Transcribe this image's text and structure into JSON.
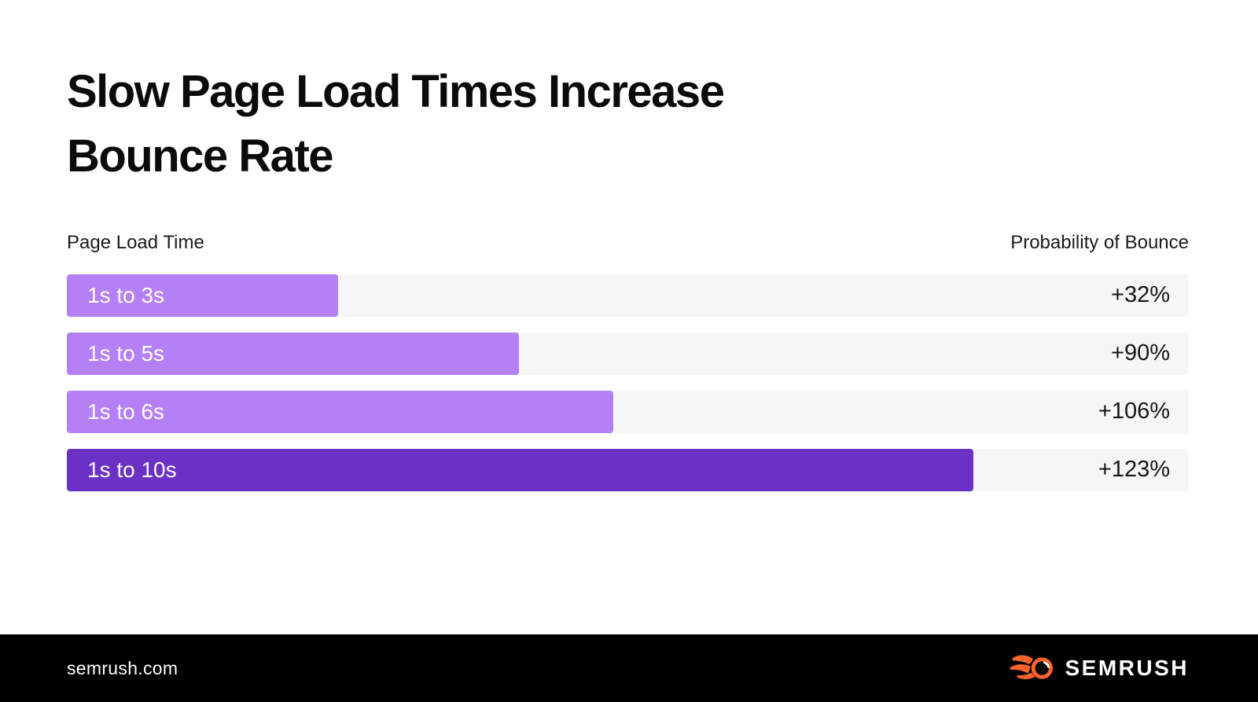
{
  "title": {
    "line1": "Slow Page Load Times Increase",
    "line2": "Bounce Rate"
  },
  "chart_data": {
    "type": "bar",
    "orientation": "horizontal",
    "title": "Slow Page Load Times Increase Bounce Rate",
    "column_headers": {
      "left": "Page Load Time",
      "right": "Probability of Bounce"
    },
    "categories": [
      "1s to 3s",
      "1s to 5s",
      "1s to 6s",
      "1s to 10s"
    ],
    "values": [
      32,
      90,
      106,
      123
    ],
    "rows": [
      {
        "label": "1s to 3s",
        "value": 32,
        "value_label": "+32%",
        "width_pct": 24.2,
        "color": "#b57ff5"
      },
      {
        "label": "1s to 5s",
        "value": 90,
        "value_label": "+90%",
        "width_pct": 40.3,
        "color": "#b57ff5"
      },
      {
        "label": "1s to 6s",
        "value": 106,
        "value_label": "+106%",
        "width_pct": 48.7,
        "color": "#b57ff5"
      },
      {
        "label": "1s to 10s",
        "value": 123,
        "value_label": "+123%",
        "width_pct": 80.8,
        "color": "#6b30c4"
      }
    ],
    "bar_color": "#b57ff5",
    "highlight_color": "#6b30c4",
    "track_color": "#f6f6f6",
    "grid": false,
    "legend": false
  },
  "footer": {
    "site": "semrush.com",
    "brand": "SEMRUSH",
    "logo_icon": "semrush-comet-icon",
    "background": "#000000",
    "accent": "#ff642d"
  }
}
